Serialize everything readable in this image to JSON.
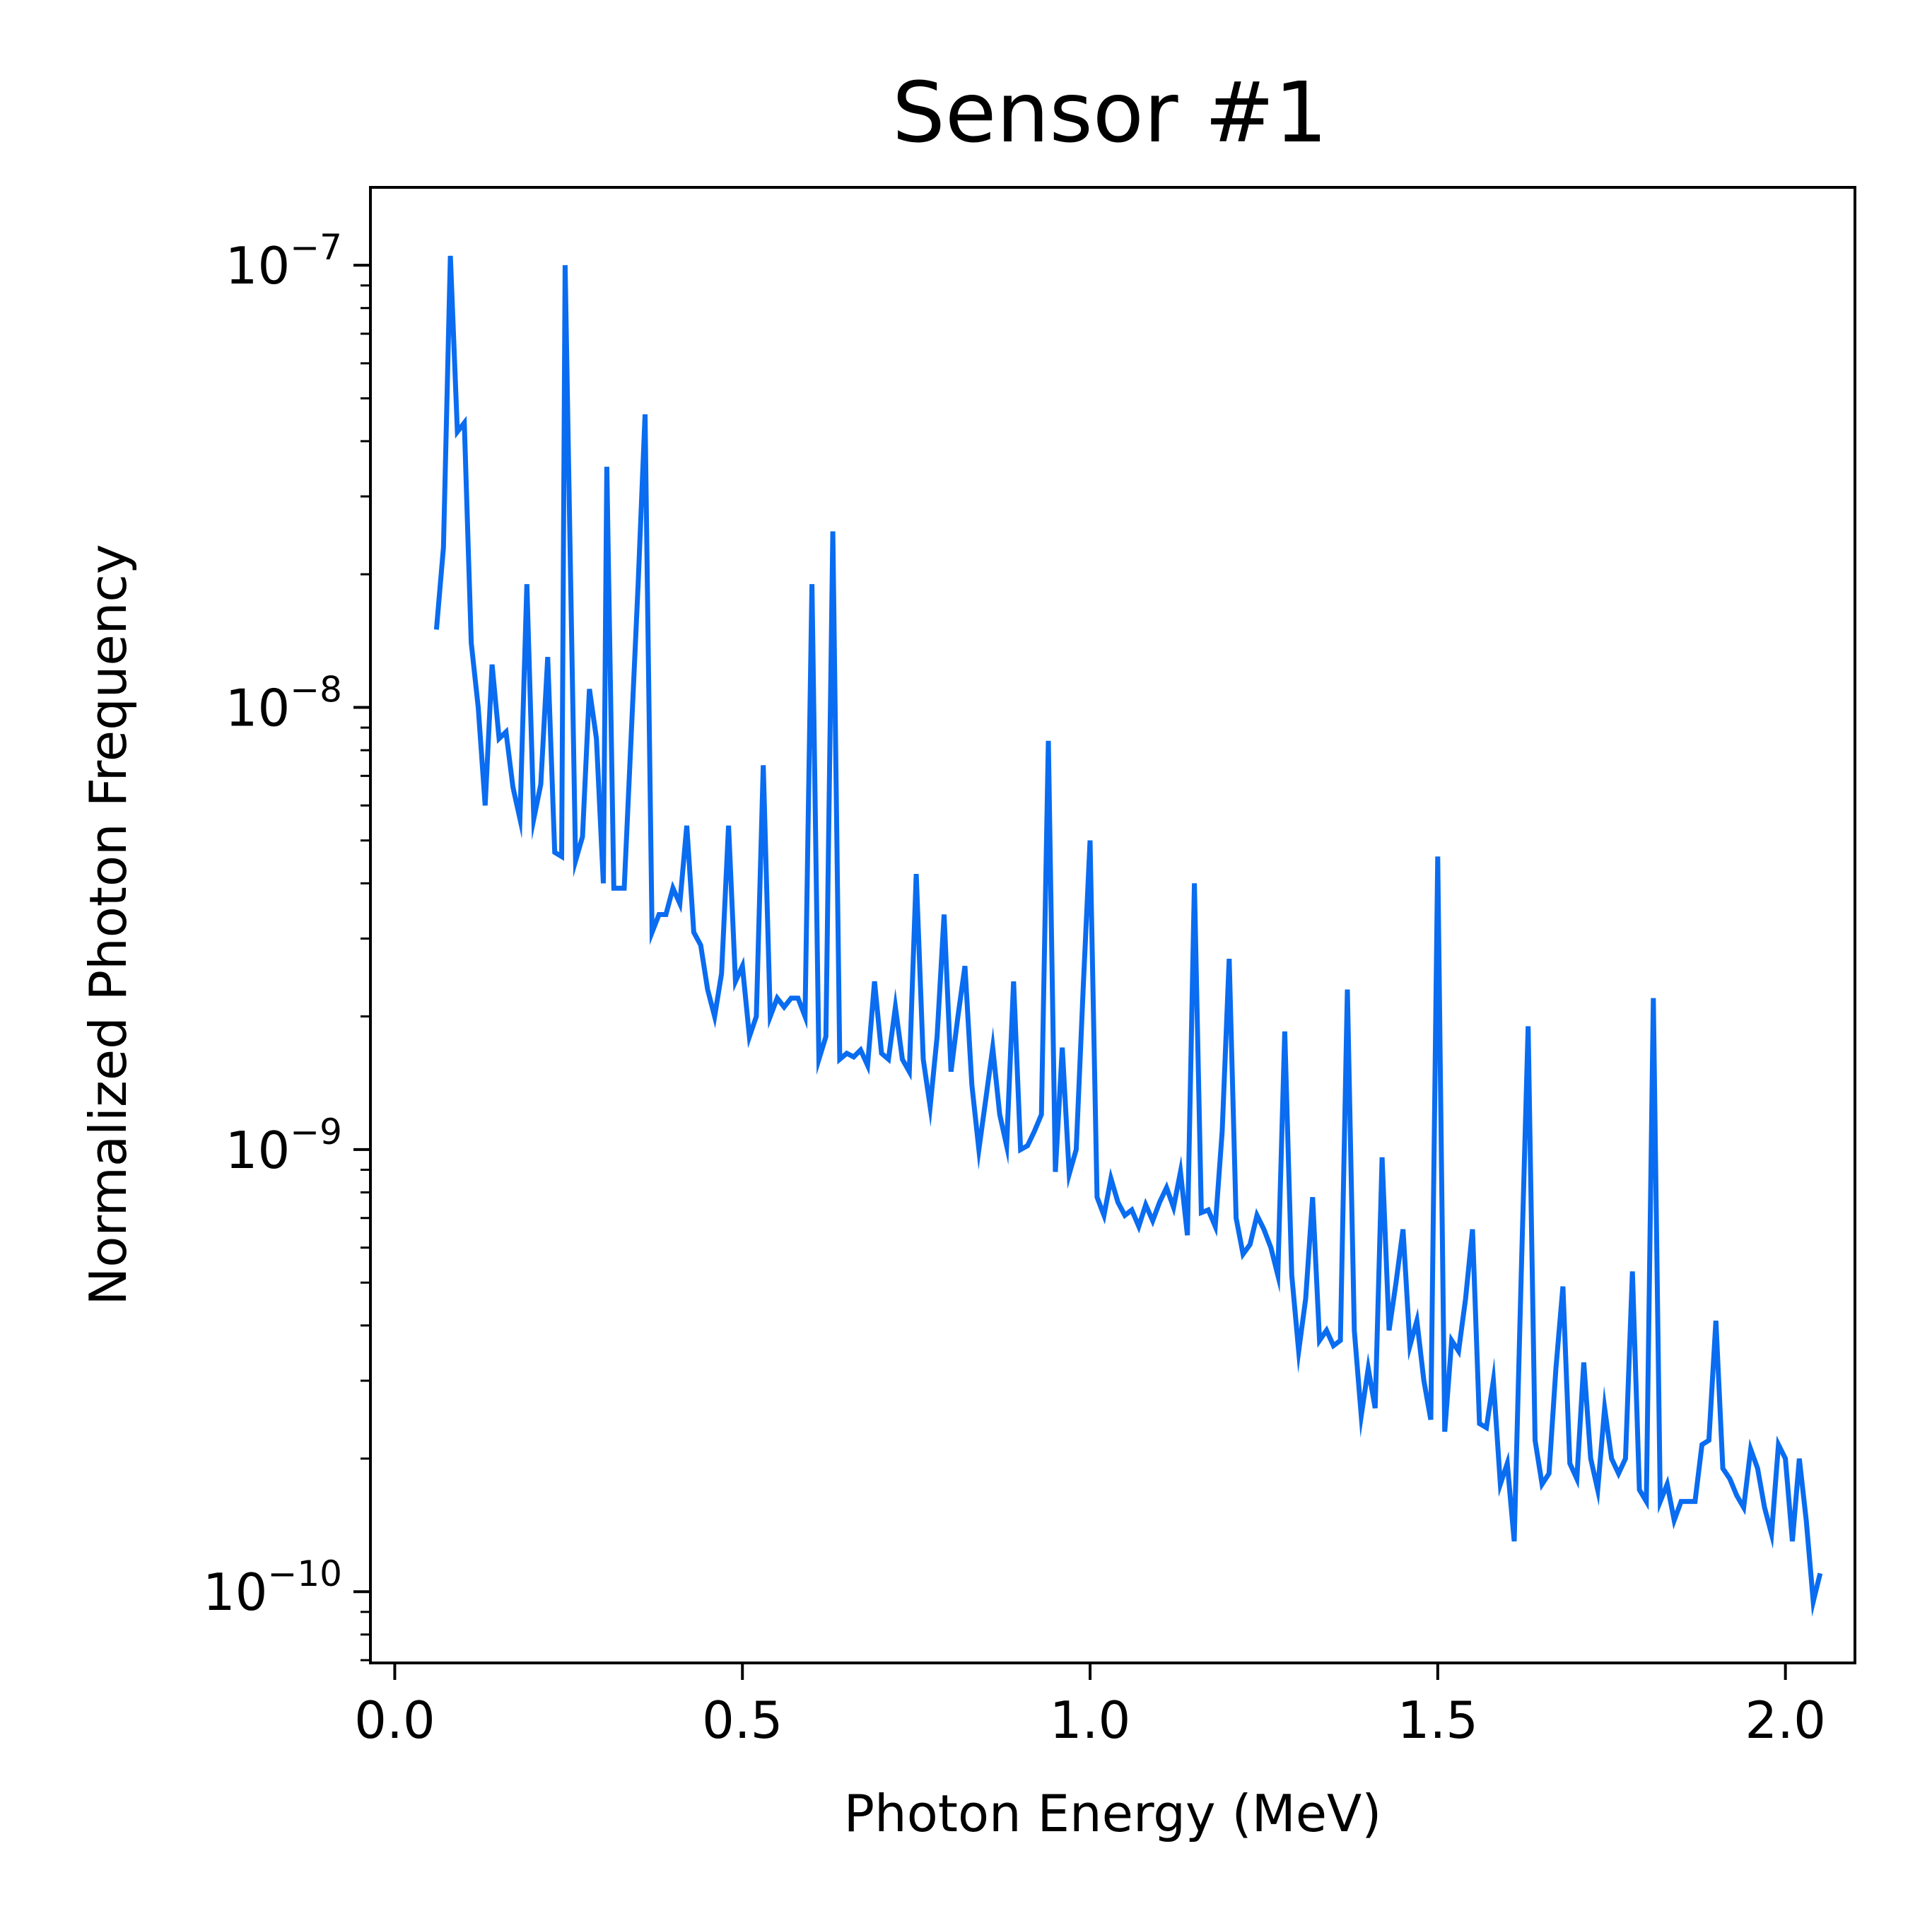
{
  "chart_data": {
    "type": "line",
    "title": "Sensor #1",
    "xlabel": "Photon Energy (MeV)",
    "ylabel": "Normalized Photon Frequency",
    "xlim": [
      -0.035,
      2.1
    ],
    "ylim": [
      6.9e-11,
      1.5e-07
    ],
    "yscale": "log",
    "grid": false,
    "legend": "none",
    "x_ticks": [
      {
        "value": 0.0,
        "label": "0.0"
      },
      {
        "value": 0.5,
        "label": "0.5"
      },
      {
        "value": 1.0,
        "label": "1.0"
      },
      {
        "value": 1.5,
        "label": "1.5"
      },
      {
        "value": 2.0,
        "label": "2.0"
      }
    ],
    "y_ticks": [
      {
        "value": 1e-07,
        "base": "10",
        "exp": "−7"
      },
      {
        "value": 1e-08,
        "base": "10",
        "exp": "−8"
      },
      {
        "value": 1e-09,
        "base": "10",
        "exp": "−9"
      },
      {
        "value": 1e-10,
        "base": "10",
        "exp": "−10"
      }
    ],
    "series": [
      {
        "color": "#0a6cf0",
        "points": [
          [
            0.06,
            1.5e-08
          ],
          [
            0.07,
            2.3e-08
          ],
          [
            0.08,
            1.05e-07
          ],
          [
            0.09,
            4.2e-08
          ],
          [
            0.1,
            4.4e-08
          ],
          [
            0.11,
            1.4e-08
          ],
          [
            0.12,
            1e-08
          ],
          [
            0.13,
            6e-09
          ],
          [
            0.14,
            1.25e-08
          ],
          [
            0.15,
            8.5e-09
          ],
          [
            0.16,
            8.8e-09
          ],
          [
            0.17,
            6.6e-09
          ],
          [
            0.18,
            5.6e-09
          ],
          [
            0.19,
            1.9e-08
          ],
          [
            0.2,
            5.6e-09
          ],
          [
            0.21,
            6.7e-09
          ],
          [
            0.22,
            1.3e-08
          ],
          [
            0.23,
            4.7e-09
          ],
          [
            0.24,
            4.6e-09
          ],
          [
            0.245,
            1e-07
          ],
          [
            0.26,
            4.5e-09
          ],
          [
            0.27,
            5.1e-09
          ],
          [
            0.28,
            1.1e-08
          ],
          [
            0.29,
            8.5e-09
          ],
          [
            0.3,
            4e-09
          ],
          [
            0.305,
            3.5e-08
          ],
          [
            0.315,
            3.9e-09
          ],
          [
            0.33,
            3.9e-09
          ],
          [
            0.35,
            1.9e-08
          ],
          [
            0.36,
            4.6e-08
          ],
          [
            0.37,
            3.1e-09
          ],
          [
            0.38,
            3.4e-09
          ],
          [
            0.39,
            3.4e-09
          ],
          [
            0.4,
            3.9e-09
          ],
          [
            0.41,
            3.6e-09
          ],
          [
            0.42,
            5.4e-09
          ],
          [
            0.43,
            3.1e-09
          ],
          [
            0.44,
            2.9e-09
          ],
          [
            0.45,
            2.3e-09
          ],
          [
            0.46,
            2e-09
          ],
          [
            0.47,
            2.5e-09
          ],
          [
            0.48,
            5.4e-09
          ],
          [
            0.49,
            2.4e-09
          ],
          [
            0.5,
            2.6e-09
          ],
          [
            0.51,
            1.8e-09
          ],
          [
            0.52,
            2e-09
          ],
          [
            0.53,
            7.4e-09
          ],
          [
            0.54,
            2e-09
          ],
          [
            0.55,
            2.2e-09
          ],
          [
            0.56,
            2.1e-09
          ],
          [
            0.57,
            2.2e-09
          ],
          [
            0.58,
            2.2e-09
          ],
          [
            0.59,
            2e-09
          ],
          [
            0.6,
            1.9e-08
          ],
          [
            0.61,
            1.6e-09
          ],
          [
            0.62,
            1.8e-09
          ],
          [
            0.63,
            2.5e-08
          ],
          [
            0.64,
            1.6e-09
          ],
          [
            0.65,
            1.65e-09
          ],
          [
            0.66,
            1.62e-09
          ],
          [
            0.67,
            1.68e-09
          ],
          [
            0.68,
            1.55e-09
          ],
          [
            0.69,
            2.4e-09
          ],
          [
            0.7,
            1.65e-09
          ],
          [
            0.71,
            1.6e-09
          ],
          [
            0.72,
            2.1e-09
          ],
          [
            0.73,
            1.6e-09
          ],
          [
            0.74,
            1.5e-09
          ],
          [
            0.75,
            4.2e-09
          ],
          [
            0.76,
            1.6e-09
          ],
          [
            0.77,
            1.25e-09
          ],
          [
            0.78,
            1.8e-09
          ],
          [
            0.79,
            3.4e-09
          ],
          [
            0.8,
            1.5e-09
          ],
          [
            0.81,
            2e-09
          ],
          [
            0.82,
            2.6e-09
          ],
          [
            0.83,
            1.4e-09
          ],
          [
            0.84,
            1e-09
          ],
          [
            0.85,
            1.3e-09
          ],
          [
            0.86,
            1.7e-09
          ],
          [
            0.87,
            1.2e-09
          ],
          [
            0.88,
            1.02e-09
          ],
          [
            0.89,
            2.4e-09
          ],
          [
            0.9,
            1e-09
          ],
          [
            0.91,
            1.02e-09
          ],
          [
            0.92,
            1.1e-09
          ],
          [
            0.93,
            1.2e-09
          ],
          [
            0.94,
            8.4e-09
          ],
          [
            0.95,
            8.9e-10
          ],
          [
            0.96,
            1.7e-09
          ],
          [
            0.97,
            8.8e-10
          ],
          [
            0.98,
            1e-09
          ],
          [
            0.99,
            2.3e-09
          ],
          [
            1.0,
            5e-09
          ],
          [
            1.01,
            7.8e-10
          ],
          [
            1.02,
            7.1e-10
          ],
          [
            1.03,
            8.6e-10
          ],
          [
            1.04,
            7.6e-10
          ],
          [
            1.05,
            7.1e-10
          ],
          [
            1.06,
            7.3e-10
          ],
          [
            1.07,
            6.7e-10
          ],
          [
            1.08,
            7.5e-10
          ],
          [
            1.09,
            6.9e-10
          ],
          [
            1.1,
            7.6e-10
          ],
          [
            1.11,
            8.2e-10
          ],
          [
            1.12,
            7.4e-10
          ],
          [
            1.13,
            8.9e-10
          ],
          [
            1.14,
            6.4e-10
          ],
          [
            1.15,
            4e-09
          ],
          [
            1.16,
            7.2e-10
          ],
          [
            1.17,
            7.3e-10
          ],
          [
            1.18,
            6.7e-10
          ],
          [
            1.19,
            1.1e-09
          ],
          [
            1.2,
            2.7e-09
          ],
          [
            1.21,
            7e-10
          ],
          [
            1.22,
            5.8e-10
          ],
          [
            1.23,
            6.1e-10
          ],
          [
            1.24,
            7.1e-10
          ],
          [
            1.25,
            6.6e-10
          ],
          [
            1.26,
            6e-10
          ],
          [
            1.27,
            5.2e-10
          ],
          [
            1.28,
            1.85e-09
          ],
          [
            1.29,
            5.2e-10
          ],
          [
            1.3,
            3.5e-10
          ],
          [
            1.31,
            4.6e-10
          ],
          [
            1.32,
            7.8e-10
          ],
          [
            1.33,
            3.7e-10
          ],
          [
            1.34,
            3.9e-10
          ],
          [
            1.35,
            3.6e-10
          ],
          [
            1.36,
            3.7e-10
          ],
          [
            1.37,
            2.3e-09
          ],
          [
            1.38,
            3.9e-10
          ],
          [
            1.39,
            2.5e-10
          ],
          [
            1.4,
            3.2e-10
          ],
          [
            1.41,
            2.6e-10
          ],
          [
            1.42,
            9.6e-10
          ],
          [
            1.43,
            3.9e-10
          ],
          [
            1.44,
            5e-10
          ],
          [
            1.45,
            6.6e-10
          ],
          [
            1.46,
            3.6e-10
          ],
          [
            1.47,
            4.1e-10
          ],
          [
            1.48,
            3e-10
          ],
          [
            1.49,
            2.45e-10
          ],
          [
            1.5,
            4.6e-09
          ],
          [
            1.51,
            2.3e-10
          ],
          [
            1.52,
            3.7e-10
          ],
          [
            1.53,
            3.5e-10
          ],
          [
            1.54,
            4.6e-10
          ],
          [
            1.55,
            6.6e-10
          ],
          [
            1.56,
            2.4e-10
          ],
          [
            1.57,
            2.35e-10
          ],
          [
            1.58,
            3e-10
          ],
          [
            1.59,
            1.75e-10
          ],
          [
            1.6,
            1.95e-10
          ],
          [
            1.61,
            1.3e-10
          ],
          [
            1.62,
            5.2e-10
          ],
          [
            1.63,
            1.9e-09
          ],
          [
            1.64,
            2.2e-10
          ],
          [
            1.65,
            1.75e-10
          ],
          [
            1.66,
            1.85e-10
          ],
          [
            1.67,
            3.2e-10
          ],
          [
            1.68,
            4.9e-10
          ],
          [
            1.69,
            1.95e-10
          ],
          [
            1.7,
            1.8e-10
          ],
          [
            1.71,
            3.3e-10
          ],
          [
            1.72,
            2e-10
          ],
          [
            1.73,
            1.7e-10
          ],
          [
            1.74,
            2.6e-10
          ],
          [
            1.75,
            2e-10
          ],
          [
            1.76,
            1.85e-10
          ],
          [
            1.77,
            2e-10
          ],
          [
            1.78,
            5.3e-10
          ],
          [
            1.79,
            1.7e-10
          ],
          [
            1.8,
            1.6e-10
          ],
          [
            1.81,
            2.2e-09
          ],
          [
            1.82,
            1.6e-10
          ],
          [
            1.83,
            1.75e-10
          ],
          [
            1.84,
            1.45e-10
          ],
          [
            1.85,
            1.6e-10
          ],
          [
            1.86,
            1.6e-10
          ],
          [
            1.87,
            1.6e-10
          ],
          [
            1.88,
            2.15e-10
          ],
          [
            1.89,
            2.2e-10
          ],
          [
            1.9,
            4.1e-10
          ],
          [
            1.91,
            1.9e-10
          ],
          [
            1.92,
            1.8e-10
          ],
          [
            1.93,
            1.65e-10
          ],
          [
            1.94,
            1.55e-10
          ],
          [
            1.95,
            2.1e-10
          ],
          [
            1.96,
            1.9e-10
          ],
          [
            1.97,
            1.55e-10
          ],
          [
            1.98,
            1.35e-10
          ],
          [
            1.99,
            2.15e-10
          ],
          [
            2.0,
            2e-10
          ],
          [
            2.01,
            1.3e-10
          ],
          [
            2.02,
            2e-10
          ],
          [
            2.03,
            1.45e-10
          ],
          [
            2.04,
            9.5e-11
          ],
          [
            2.05,
            1.1e-10
          ]
        ]
      }
    ]
  }
}
